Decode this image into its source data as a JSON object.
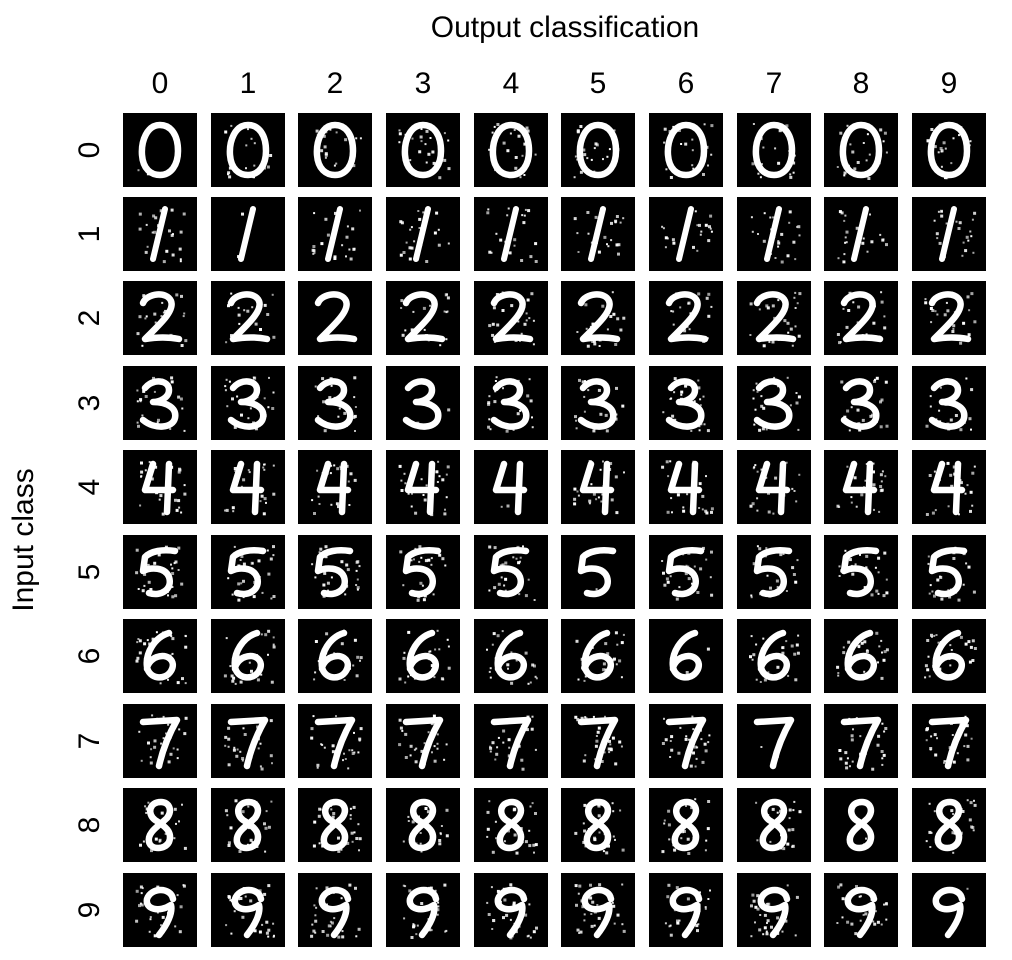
{
  "figure": {
    "title": "Output classification",
    "ylabel": "Input class",
    "col_ticks": [
      "0",
      "1",
      "2",
      "3",
      "4",
      "5",
      "6",
      "7",
      "8",
      "9"
    ],
    "row_ticks": [
      "0",
      "1",
      "2",
      "3",
      "4",
      "5",
      "6",
      "7",
      "8",
      "9"
    ],
    "background_color": "#000000",
    "digit_color": "#ffffff",
    "grid": {
      "rows": 10,
      "cols": 10,
      "cell_content": "handwritten digit image (input class = row, output classification = column)"
    }
  }
}
